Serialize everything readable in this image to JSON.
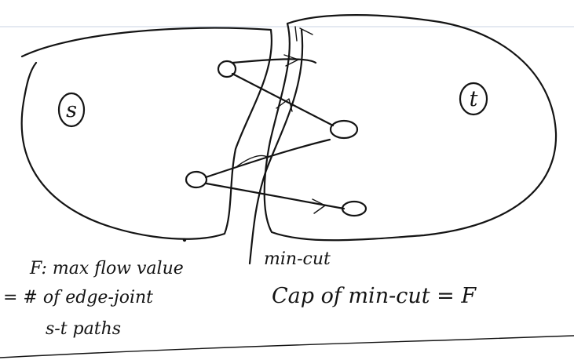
{
  "nodes": {
    "source_label": "s",
    "sink_label": "t"
  },
  "notes": {
    "flow_definition": "F: max flow value",
    "equals_paths_line1": "= # of edge-joint",
    "equals_paths_line2": "s-t paths",
    "min_cut_label": "min-cut",
    "cut_capacity": "Cap of min-cut = F"
  }
}
